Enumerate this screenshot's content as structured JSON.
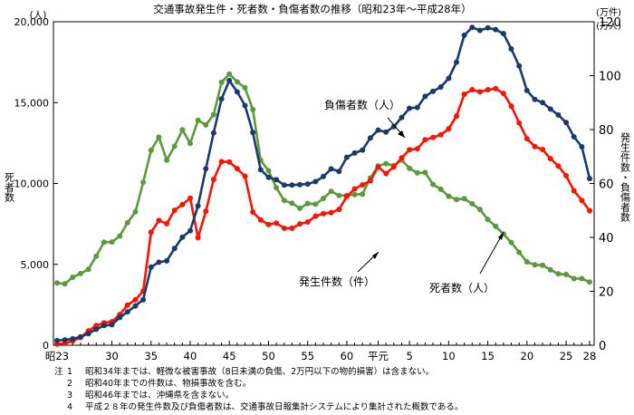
{
  "chart_data": {
    "type": "line",
    "title": "交通事故発生件・死者数・負傷者数の推移（昭和23年～平成28年）",
    "left_axis": {
      "unit_label": "(人)",
      "title": "死者数",
      "ylim": [
        0,
        20000
      ],
      "ticks": [
        0,
        5000,
        10000,
        15000,
        20000
      ],
      "tick_labels": [
        "0",
        "5,000",
        "10,000",
        "15,000",
        "20,000"
      ]
    },
    "right_axis": {
      "unit_label_1": "(万件)",
      "unit_label_2": "(万人)",
      "title": "発生件数・負傷者数",
      "ylim": [
        0,
        120
      ],
      "ticks": [
        0,
        20,
        40,
        60,
        80,
        100,
        120
      ],
      "tick_labels": [
        "0",
        "20",
        "40",
        "60",
        "80",
        "100",
        "120"
      ]
    },
    "x_index_range": [
      0,
      68
    ],
    "x_ticks": [
      {
        "index": 0,
        "label": "昭23"
      },
      {
        "index": 7,
        "label": "30"
      },
      {
        "index": 12,
        "label": "35"
      },
      {
        "index": 17,
        "label": "40"
      },
      {
        "index": 22,
        "label": "45"
      },
      {
        "index": 27,
        "label": "50"
      },
      {
        "index": 32,
        "label": "55"
      },
      {
        "index": 37,
        "label": "60"
      },
      {
        "index": 41,
        "label": "平元"
      },
      {
        "index": 45,
        "label": "5"
      },
      {
        "index": 50,
        "label": "10"
      },
      {
        "index": 55,
        "label": "15"
      },
      {
        "index": 60,
        "label": "20"
      },
      {
        "index": 65,
        "label": "25"
      },
      {
        "index": 68,
        "label": "28"
      }
    ],
    "series": [
      {
        "name": "死者数",
        "axis": "left",
        "color": "#5a9a3c",
        "label": "死者数（人）",
        "values": [
          3848,
          3790,
          4202,
          4429,
          4696,
          5506,
          6374,
          6379,
          6751,
          7575,
          8248,
          10079,
          12055,
          12865,
          11445,
          12301,
          13318,
          12484,
          13904,
          13618,
          14256,
          16257,
          16765,
          16278,
          15918,
          14574,
          11432,
          10792,
          9734,
          8945,
          8783,
          8466,
          8760,
          8719,
          9073,
          9520,
          9262,
          9261,
          9317,
          9347,
          10344,
          11086,
          11227,
          11105,
          11451,
          10942,
          10649,
          10679,
          9942,
          9640,
          9211,
          9006,
          9066,
          8747,
          8396,
          7768,
          7358,
          6871,
          6352,
          5744,
          5155,
          4968,
          4948,
          4663,
          4411,
          4373,
          4117,
          4117,
          3904
        ]
      },
      {
        "name": "発生件数",
        "axis": "right",
        "color": "#ff1100",
        "label": "発生件数（件）",
        "values": [
          0.4,
          0.7,
          1.6,
          2.9,
          5.3,
          7.3,
          8.3,
          8.7,
          11.4,
          14.9,
          16.9,
          20.1,
          41.9,
          46.3,
          45.1,
          50.1,
          52.2,
          54.6,
          39.9,
          49.7,
          61.5,
          68.1,
          68.0,
          65.5,
          62.7,
          49.4,
          46.5,
          44.8,
          45.3,
          43.4,
          43.4,
          45.0,
          45.7,
          47.9,
          48.8,
          49.2,
          50.4,
          55.2,
          58.0,
          59.5,
          61.0,
          66.2,
          63.7,
          66.2,
          69.5,
          72.5,
          72.9,
          76.2,
          77.1,
          78.1,
          80.3,
          85.0,
          93.1,
          94.8,
          94.0,
          94.8,
          95.2,
          93.4,
          88.7,
          82.5,
          76.6,
          73.7,
          72.6,
          69.2,
          66.5,
          62.9,
          57.3,
          53.7,
          49.9
        ]
      },
      {
        "name": "負傷者数",
        "axis": "right",
        "color": "#183a6e",
        "label": "負傷者数（人）",
        "values": [
          1.7,
          2.0,
          2.4,
          3.1,
          4.3,
          5.9,
          7.3,
          7.6,
          10.3,
          12.4,
          14.6,
          16.9,
          29.0,
          30.8,
          31.3,
          35.9,
          40.1,
          42.5,
          51.7,
          65.5,
          78.8,
          91.4,
          98.2,
          94.0,
          88.9,
          78.9,
          65.1,
          62.3,
          61.4,
          59.4,
          59.4,
          59.6,
          59.8,
          60.7,
          62.6,
          65.4,
          64.5,
          69.7,
          71.3,
          72.4,
          76.9,
          79.8,
          79.1,
          81.1,
          84.5,
          87.9,
          88.2,
          92.3,
          94.2,
          95.8,
          99.0,
          105.0,
          115.0,
          117.9,
          116.8,
          117.7,
          117.1,
          115.6,
          109.9,
          103.6,
          94.5,
          91.2,
          90.0,
          87.6,
          85.4,
          82.6,
          77.3,
          73.6,
          61.8
        ]
      }
    ],
    "annotations": [
      {
        "text": "負傷者数（人）",
        "series": "負傷者数"
      },
      {
        "text": "発生件数（件）",
        "series": "発生件数"
      },
      {
        "text": "死者数（人）",
        "series": "死者数"
      }
    ],
    "legend": "inline-annotations"
  },
  "notes": [
    {
      "prefix": "注",
      "num": "1",
      "text": "昭和34年までは、軽微な被害事故（8日未満の負傷、2万円以下の物的損害）は含まない。"
    },
    {
      "prefix": "",
      "num": "2",
      "text": "昭和40年までの件数は、物損事故を含む。"
    },
    {
      "prefix": "",
      "num": "3",
      "text": "昭和46年までは、沖縄県を含まない。"
    },
    {
      "prefix": "",
      "num": "4",
      "text": "平成２８年の発生件数及び負傷者数は、交通事故日報集計システムにより集計された概数である。"
    }
  ]
}
